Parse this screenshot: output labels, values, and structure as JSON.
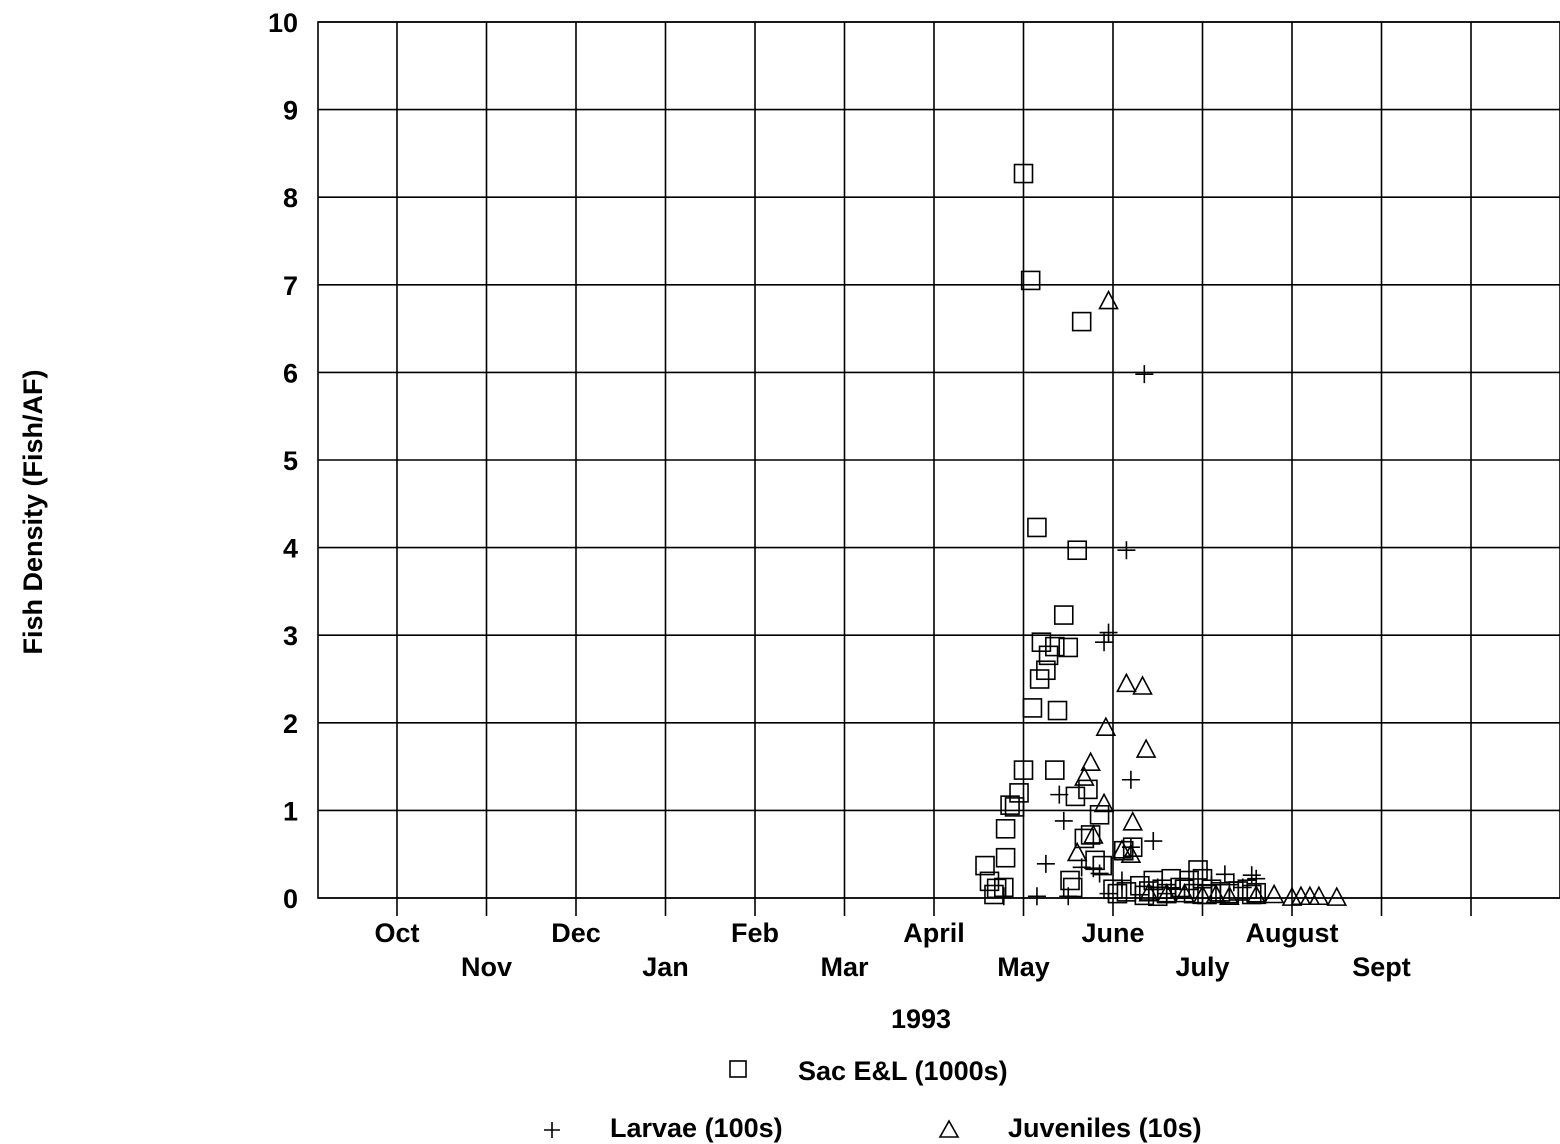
{
  "chart_data": {
    "type": "scatter",
    "xlabel": "1993",
    "ylabel": "Fish Density (Fish/AF)",
    "ylim": [
      0,
      10
    ],
    "yticks": [
      "0",
      "1",
      "2",
      "3",
      "4",
      "5",
      "6",
      "7",
      "8",
      "9",
      "10"
    ],
    "month_ticks": [
      "Oct",
      "Nov",
      "Dec",
      "Jan",
      "Feb",
      "Mar",
      "April",
      "May",
      "June",
      "July",
      "August",
      "Sept"
    ],
    "x_units": "month index (0 = Oct, 7 = May, 8 = June)",
    "grid": true,
    "legend_position": "bottom",
    "series": [
      {
        "name": "Sac E&L (1000s)",
        "marker": "square",
        "points": [
          [
            7.0,
            8.27
          ],
          [
            7.08,
            7.05
          ],
          [
            7.65,
            6.58
          ],
          [
            7.15,
            4.23
          ],
          [
            7.6,
            3.97
          ],
          [
            7.45,
            3.23
          ],
          [
            7.2,
            2.92
          ],
          [
            7.35,
            2.87
          ],
          [
            7.5,
            2.86
          ],
          [
            7.28,
            2.77
          ],
          [
            7.25,
            2.6
          ],
          [
            7.18,
            2.5
          ],
          [
            7.1,
            2.17
          ],
          [
            7.38,
            2.14
          ],
          [
            7.0,
            1.46
          ],
          [
            7.35,
            1.46
          ],
          [
            7.72,
            1.24
          ],
          [
            7.58,
            1.16
          ],
          [
            6.95,
            1.2
          ],
          [
            6.9,
            1.04
          ],
          [
            6.85,
            1.06
          ],
          [
            6.8,
            0.79
          ],
          [
            7.75,
            0.72
          ],
          [
            7.68,
            0.68
          ],
          [
            7.85,
            0.95
          ],
          [
            8.12,
            0.54
          ],
          [
            8.22,
            0.58
          ],
          [
            7.8,
            0.43
          ],
          [
            7.88,
            0.37
          ],
          [
            6.8,
            0.46
          ],
          [
            6.57,
            0.37
          ],
          [
            6.62,
            0.19
          ],
          [
            6.7,
            0.11
          ],
          [
            6.78,
            0.12
          ],
          [
            6.67,
            0.04
          ],
          [
            7.52,
            0.2
          ],
          [
            7.55,
            0.12
          ],
          [
            9.0,
            0.22
          ],
          [
            8.95,
            0.32
          ],
          [
            8.0,
            0.1
          ],
          [
            8.05,
            0.05
          ],
          [
            8.15,
            0.07
          ],
          [
            8.3,
            0.14
          ],
          [
            8.4,
            0.08
          ],
          [
            8.45,
            0.2
          ],
          [
            8.55,
            0.1
          ],
          [
            8.6,
            0.05
          ],
          [
            8.65,
            0.22
          ],
          [
            8.75,
            0.12
          ],
          [
            8.8,
            0.1
          ],
          [
            8.85,
            0.2
          ],
          [
            8.9,
            0.05
          ],
          [
            9.1,
            0.1
          ],
          [
            9.2,
            0.07
          ],
          [
            9.3,
            0.05
          ],
          [
            9.4,
            0.08
          ],
          [
            9.5,
            0.1
          ],
          [
            9.55,
            0.04
          ],
          [
            9.6,
            0.06
          ],
          [
            9.05,
            0.04
          ],
          [
            8.35,
            0.03
          ],
          [
            8.5,
            0.02
          ]
        ]
      },
      {
        "name": "Larvae (100s)",
        "marker": "plus",
        "points": [
          [
            8.35,
            5.98
          ],
          [
            8.15,
            3.97
          ],
          [
            7.95,
            3.03
          ],
          [
            7.9,
            2.92
          ],
          [
            8.2,
            1.35
          ],
          [
            8.45,
            0.65
          ],
          [
            8.2,
            0.58
          ],
          [
            7.4,
            1.18
          ],
          [
            7.45,
            0.88
          ],
          [
            7.25,
            0.39
          ],
          [
            7.65,
            0.35
          ],
          [
            7.78,
            0.34
          ],
          [
            7.85,
            0.28
          ],
          [
            6.78,
            0.02
          ],
          [
            7.15,
            0.02
          ],
          [
            7.5,
            0.02
          ],
          [
            8.1,
            0.2
          ],
          [
            9.25,
            0.27
          ],
          [
            9.55,
            0.26
          ],
          [
            9.6,
            0.22
          ],
          [
            8.5,
            0.12
          ],
          [
            8.7,
            0.1
          ],
          [
            9.1,
            0.15
          ],
          [
            9.35,
            0.18
          ],
          [
            9.45,
            0.12
          ],
          [
            7.95,
            0.05
          ],
          [
            8.6,
            0.05
          ]
        ]
      },
      {
        "name": "Juveniles (10s)",
        "marker": "triangle",
        "points": [
          [
            7.95,
            6.82
          ],
          [
            8.15,
            2.45
          ],
          [
            8.33,
            2.42
          ],
          [
            7.92,
            1.95
          ],
          [
            8.37,
            1.7
          ],
          [
            7.75,
            1.55
          ],
          [
            7.68,
            1.38
          ],
          [
            7.9,
            1.08
          ],
          [
            8.22,
            0.87
          ],
          [
            7.78,
            0.72
          ],
          [
            7.6,
            0.52
          ],
          [
            8.2,
            0.5
          ],
          [
            8.1,
            0.55
          ],
          [
            9.8,
            0.04
          ],
          [
            10.0,
            0.01
          ],
          [
            10.1,
            0.02
          ],
          [
            10.2,
            0.02
          ],
          [
            10.3,
            0.02
          ],
          [
            10.5,
            0.01
          ],
          [
            8.6,
            0.05
          ],
          [
            8.8,
            0.05
          ],
          [
            9.0,
            0.03
          ],
          [
            9.3,
            0.02
          ],
          [
            9.6,
            0.03
          ],
          [
            8.4,
            0.06
          ],
          [
            9.15,
            0.04
          ]
        ]
      }
    ]
  }
}
